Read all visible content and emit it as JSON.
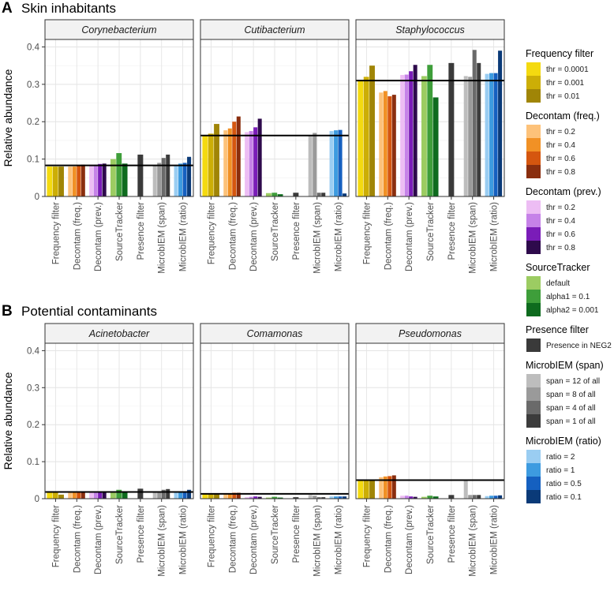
{
  "figure": {
    "panel_a": {
      "letter": "A",
      "title": "Skin inhabitants"
    },
    "panel_b": {
      "letter": "B",
      "title": "Potential contaminants"
    }
  },
  "chart_data": [
    {
      "type": "bar",
      "panel": "A",
      "title": "Skin inhabitants",
      "ylabel": "Relative abundance",
      "ylim": [
        0,
        0.42
      ],
      "yticks": [
        0,
        0.1,
        0.2,
        0.3,
        0.4
      ],
      "ytick_labels": [
        "0",
        "0.1",
        "0.2",
        "0.3",
        "0.4"
      ],
      "categories": [
        "Frequency filter",
        "Decontam (freq.)",
        "Decontam (prev.)",
        "SourceTracker",
        "Presence filter",
        "MicrobIEM (span)",
        "MicrobIEM (ratio)"
      ],
      "facets": [
        {
          "name": "Corynebacterium",
          "reference": 0.083,
          "values": [
            [
              0.08,
              0.08,
              0.08
            ],
            [
              0.08,
              0.08,
              0.082,
              0.085
            ],
            [
              0.085,
              0.085,
              0.087,
              0.088
            ],
            [
              0.1,
              0.116,
              0.088
            ],
            [
              0.112
            ],
            [
              0.082,
              0.09,
              0.103,
              0.112
            ],
            [
              0.082,
              0.088,
              0.09,
              0.106
            ]
          ]
        },
        {
          "name": "Cutibacterium",
          "reference": 0.163,
          "values": [
            [
              0.163,
              0.168,
              0.194
            ],
            [
              0.177,
              0.182,
              0.2,
              0.214
            ],
            [
              0.172,
              0.175,
              0.185,
              0.208
            ],
            [
              0.009,
              0.01,
              0.006
            ],
            [
              0.01
            ],
            [
              0.163,
              0.17,
              0.01,
              0.01
            ],
            [
              0.175,
              0.177,
              0.178,
              0.008
            ]
          ]
        },
        {
          "name": "Staphylococcus",
          "reference": 0.31,
          "values": [
            [
              0.31,
              0.32,
              0.35
            ],
            [
              0.278,
              0.282,
              0.268,
              0.272
            ],
            [
              0.325,
              0.326,
              0.335,
              0.352
            ],
            [
              0.322,
              0.352,
              0.265
            ],
            [
              0.357
            ],
            [
              0.322,
              0.32,
              0.392,
              0.357
            ],
            [
              0.328,
              0.33,
              0.33,
              0.39
            ]
          ]
        }
      ]
    },
    {
      "type": "bar",
      "panel": "B",
      "title": "Potential contaminants",
      "ylabel": "Relative abundance",
      "ylim": [
        0,
        0.42
      ],
      "yticks": [
        0,
        0.1,
        0.2,
        0.3,
        0.4
      ],
      "ytick_labels": [
        "0",
        "0.1",
        "0.2",
        "0.3",
        "0.4"
      ],
      "categories": [
        "Frequency filter",
        "Decontam (freq.)",
        "Decontam (prev.)",
        "SourceTracker",
        "Presence filter",
        "MicrobIEM (span)",
        "MicrobIEM (ratio)"
      ],
      "facets": [
        {
          "name": "Acinetobacter",
          "reference": 0.018,
          "values": [
            [
              0.018,
              0.016,
              0.011
            ],
            [
              0.017,
              0.018,
              0.02,
              0.02
            ],
            [
              0.018,
              0.018,
              0.019,
              0.02
            ],
            [
              0.02,
              0.024,
              0.02
            ],
            [
              0.027
            ],
            [
              0.017,
              0.02,
              0.024,
              0.026
            ],
            [
              0.018,
              0.019,
              0.02,
              0.024
            ]
          ]
        },
        {
          "name": "Comamonas",
          "reference": 0.013,
          "values": [
            [
              0.013,
              0.012,
              0.012
            ],
            [
              0.013,
              0.014,
              0.016,
              0.016
            ],
            [
              0.004,
              0.005,
              0.006,
              0.005
            ],
            [
              0.003,
              0.005,
              0.003
            ],
            [
              0.004
            ],
            [
              0.01,
              0.008,
              0.004,
              0.004
            ],
            [
              0.006,
              0.006,
              0.006,
              0.006
            ]
          ]
        },
        {
          "name": "Pseudomonas",
          "reference": 0.05,
          "values": [
            [
              0.05,
              0.05,
              0.052
            ],
            [
              0.058,
              0.06,
              0.061,
              0.063
            ],
            [
              0.008,
              0.008,
              0.006,
              0.005
            ],
            [
              0.005,
              0.008,
              0.006
            ],
            [
              0.01
            ],
            [
              0.05,
              0.01,
              0.01,
              0.01
            ],
            [
              0.007,
              0.008,
              0.008,
              0.009
            ]
          ]
        }
      ]
    }
  ],
  "methods": [
    {
      "name": "Frequency filter",
      "colors": [
        "#F4DA10",
        "#CCAE06",
        "#A08506"
      ]
    },
    {
      "name": "Decontam (freq.)",
      "colors": [
        "#FDC27A",
        "#F19125",
        "#D5560F",
        "#8A2E0E"
      ]
    },
    {
      "name": "Decontam (prev.)",
      "colors": [
        "#EDBDF4",
        "#C682E8",
        "#7A1CB8",
        "#2E0A4C"
      ]
    },
    {
      "name": "SourceTracker",
      "colors": [
        "#9CCC62",
        "#3E9E3A",
        "#0E6B1E"
      ]
    },
    {
      "name": "Presence filter",
      "colors": [
        "#3A3A3A"
      ]
    },
    {
      "name": "MicrobIEM (span)",
      "colors": [
        "#BDBDBD",
        "#9A9A9A",
        "#6A6A6A",
        "#3C3C3C"
      ]
    },
    {
      "name": "MicrobIEM (ratio)",
      "colors": [
        "#9ACDF2",
        "#3D9BE0",
        "#1560C0",
        "#0A3A78"
      ]
    }
  ],
  "legend": [
    {
      "title": "Frequency filter",
      "items": [
        {
          "label": "thr = 0.0001",
          "color": "#F4DA10"
        },
        {
          "label": "thr = 0.001",
          "color": "#CCAE06"
        },
        {
          "label": "thr = 0.01",
          "color": "#A08506"
        }
      ]
    },
    {
      "title": "Decontam (freq.)",
      "items": [
        {
          "label": "thr = 0.2",
          "color": "#FDC27A"
        },
        {
          "label": "thr = 0.4",
          "color": "#F19125"
        },
        {
          "label": "thr = 0.6",
          "color": "#D5560F"
        },
        {
          "label": "thr = 0.8",
          "color": "#8A2E0E"
        }
      ]
    },
    {
      "title": "Decontam (prev.)",
      "items": [
        {
          "label": "thr = 0.2",
          "color": "#EDBDF4"
        },
        {
          "label": "thr = 0.4",
          "color": "#C682E8"
        },
        {
          "label": "thr = 0.6",
          "color": "#7A1CB8"
        },
        {
          "label": "thr = 0.8",
          "color": "#2E0A4C"
        }
      ]
    },
    {
      "title": "SourceTracker",
      "items": [
        {
          "label": "default",
          "color": "#9CCC62"
        },
        {
          "label": "alpha1 = 0.1",
          "color": "#3E9E3A"
        },
        {
          "label": "alpha2 = 0.001",
          "color": "#0E6B1E"
        }
      ]
    },
    {
      "title": "Presence filter",
      "items": [
        {
          "label": "Presence in NEG2",
          "color": "#3A3A3A"
        }
      ]
    },
    {
      "title": "MicrobIEM (span)",
      "items": [
        {
          "label": "span = 12 of all",
          "color": "#BDBDBD"
        },
        {
          "label": "span = 8 of all",
          "color": "#9A9A9A"
        },
        {
          "label": "span = 4 of all",
          "color": "#6A6A6A"
        },
        {
          "label": "span = 1 of all",
          "color": "#3C3C3C"
        }
      ]
    },
    {
      "title": "MicrobIEM (ratio)",
      "items": [
        {
          "label": "ratio = 2",
          "color": "#9ACDF2"
        },
        {
          "label": "ratio = 1",
          "color": "#3D9BE0"
        },
        {
          "label": "ratio = 0.5",
          "color": "#1560C0"
        },
        {
          "label": "ratio = 0.1",
          "color": "#0A3A78"
        }
      ]
    }
  ]
}
